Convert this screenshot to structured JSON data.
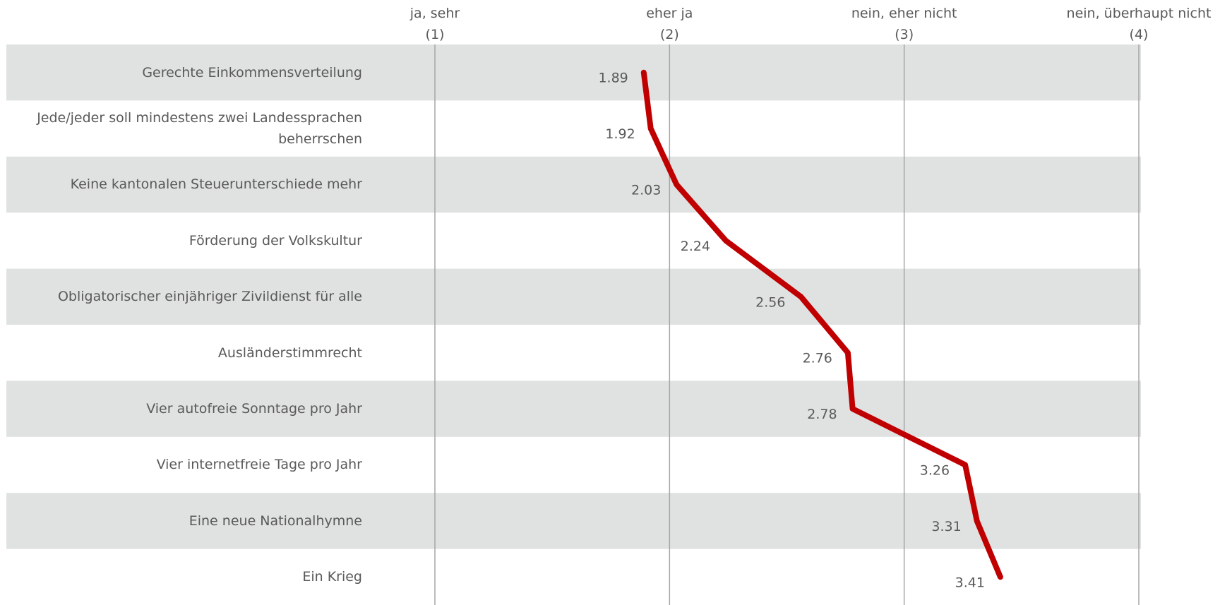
{
  "chart_data": {
    "type": "line",
    "categories": [
      "Gerechte Einkommensverteilung",
      "Jede/jeder soll mindestens zwei Landessprachen beherrschen",
      "Keine kantonalen Steuerunterschiede mehr",
      "Förderung der Volkskultur",
      "Obligatorischer einjähriger Zivildienst für alle",
      "Ausländerstimmrecht",
      "Vier autofreie Sonntage pro Jahr",
      "Vier internetfreie Tage pro Jahr",
      "Eine neue Nationalhymne",
      "Ein Krieg"
    ],
    "values": [
      1.89,
      1.92,
      2.03,
      2.24,
      2.56,
      2.76,
      2.78,
      3.26,
      3.31,
      3.41
    ],
    "color": "#c00000",
    "xlim": [
      1,
      4
    ],
    "xticks": [
      {
        "value": 1,
        "label": "(1)"
      },
      {
        "value": 2,
        "label": "(2)"
      },
      {
        "value": 3,
        "label": "(3)"
      },
      {
        "value": 4,
        "label": "(4)"
      }
    ],
    "xtick_titles": [
      "ja, sehr",
      "eher  ja",
      "nein, eher nicht",
      "nein, überhaupt nicht"
    ],
    "grid": true
  }
}
